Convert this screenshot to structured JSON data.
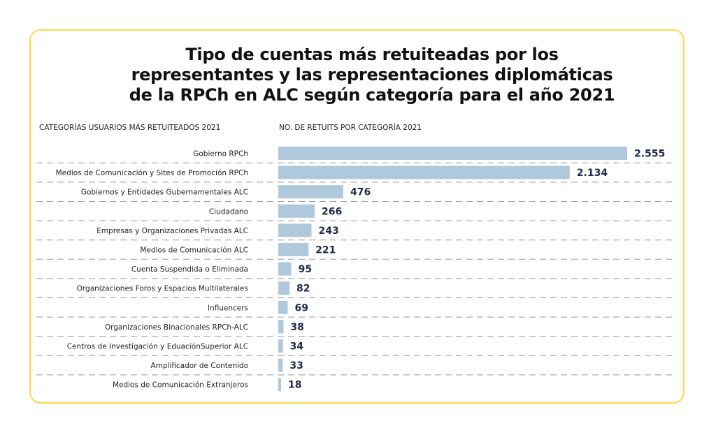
{
  "title_lines": [
    "Tipo de cuentas más retuiteadas por los",
    "representantes y las representaciones diplomáticas",
    "de la RPCh en ALC según categoría para el año 2021"
  ],
  "colors": {
    "bar": "#AFC8DC",
    "value_text": "#1F2A4A",
    "border": "#FFD84D",
    "gridline": "#9A9A9A"
  },
  "chart_data": {
    "type": "bar",
    "orientation": "horizontal",
    "title": "Tipo de cuentas más retuiteadas por los representantes y las representaciones diplomáticas de la RPCh en ALC según categoría para el año 2021",
    "xlabel": "NO. DE RETUITS POR CATEGORÍA 2021",
    "ylabel": "CATEGORÍAS USUARIOS MÁS RETUITEADOS 2021",
    "xlim": [
      0,
      2555
    ],
    "grid": "dashed row separators",
    "categories": [
      "Gobierno RPCh",
      "Medios de Comunicación y Sites de Promoción RPCh",
      "Gobiernos y Entidades Gubernamentales ALC",
      "Ciudadano",
      "Empresas y Organizaciones Privadas ALC",
      "Medios de Comunicación ALC",
      "Cuenta Suspendida o Eliminada",
      "Organizaciones Foros y Espacios Multilaterales",
      "Influencers",
      "Organizaciones Binacionales RPCh-ALC",
      "Centros de Investigación y EduaciónSuperior ALC",
      "Amplificador de Contenido",
      "Medios de Comunicación Extranjeros"
    ],
    "values": [
      2555,
      2134,
      476,
      266,
      243,
      221,
      95,
      82,
      69,
      38,
      34,
      33,
      18
    ],
    "value_labels": [
      "2.555",
      "2.134",
      "476",
      "266",
      "243",
      "221",
      "95",
      "82",
      "69",
      "38",
      "34",
      "33",
      "18"
    ]
  }
}
